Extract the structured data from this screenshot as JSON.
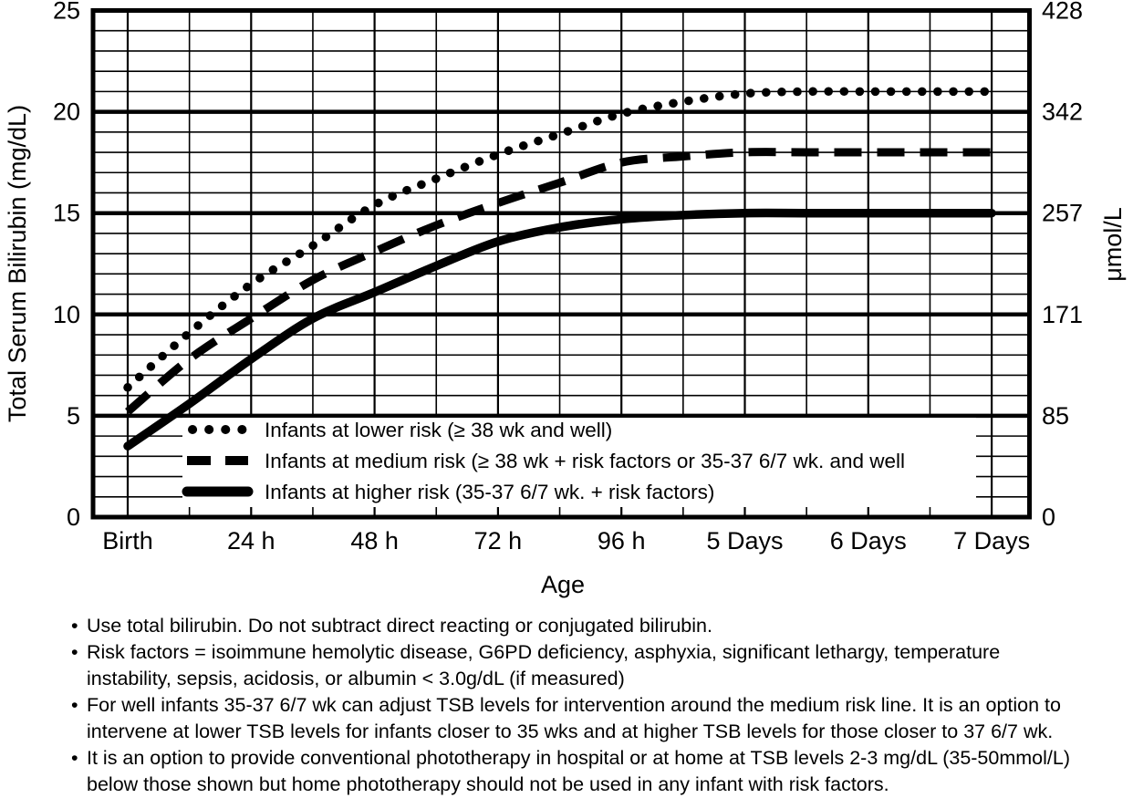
{
  "chart_data": {
    "type": "line",
    "title": "",
    "xlabel": "Age",
    "ylabel_left": "Total Serum Bilirubin (mg/dL)",
    "ylabel_right": "μmol/L",
    "ylim": [
      0,
      25
    ],
    "xlim_hours": [
      -6.7,
      175.4
    ],
    "grid": {
      "on": true,
      "x_minor_step_hours": 12,
      "y_minor_step_mgdl": 1,
      "y_major_step_mgdl": 5
    },
    "x_ticks": [
      {
        "hours": 0,
        "label": "Birth"
      },
      {
        "hours": 24,
        "label": "24 h"
      },
      {
        "hours": 48,
        "label": "48 h"
      },
      {
        "hours": 72,
        "label": "72 h"
      },
      {
        "hours": 96,
        "label": "96 h"
      },
      {
        "hours": 120,
        "label": "5 Days"
      },
      {
        "hours": 144,
        "label": "6 Days"
      },
      {
        "hours": 168,
        "label": "7 Days"
      }
    ],
    "y_left_ticks": [
      0,
      5,
      10,
      15,
      20,
      25
    ],
    "y_right_ticks": [
      {
        "at_mgdl": 0,
        "label": "0"
      },
      {
        "at_mgdl": 5,
        "label": "85"
      },
      {
        "at_mgdl": 10,
        "label": "171"
      },
      {
        "at_mgdl": 15,
        "label": "257"
      },
      {
        "at_mgdl": 20,
        "label": "342"
      },
      {
        "at_mgdl": 25,
        "label": "428"
      }
    ],
    "legend_position": "inside-bottom-left",
    "x_hours": [
      0,
      12,
      24,
      36,
      48,
      60,
      72,
      84,
      96,
      108,
      120,
      132,
      144,
      156,
      168
    ],
    "series": [
      {
        "name": "lower-risk",
        "style": "dotted",
        "label": "Infants at lower risk (≥ 38 wk and well)",
        "values": [
          6.4,
          9.1,
          11.5,
          13.4,
          15.4,
          16.7,
          17.9,
          18.9,
          19.9,
          20.5,
          20.9,
          21,
          21,
          21,
          21
        ]
      },
      {
        "name": "medium-risk",
        "style": "dashed",
        "label": "Infants at medium risk (≥ 38 wk + risk factors or 35-37 6/7 wk. and well",
        "values": [
          5.2,
          7.8,
          9.8,
          11.7,
          13.1,
          14.4,
          15.5,
          16.5,
          17.5,
          17.8,
          18,
          18,
          18,
          18,
          18
        ]
      },
      {
        "name": "higher-risk",
        "style": "solid",
        "label": "Infants at higher risk (35-37 6/7 wk. + risk factors)",
        "values": [
          3.5,
          5.6,
          7.8,
          9.8,
          11.1,
          12.4,
          13.6,
          14.3,
          14.7,
          14.9,
          15,
          15,
          15,
          15,
          15
        ]
      }
    ],
    "colors": {
      "line_color": "#000000",
      "background": "#ffffff"
    }
  },
  "footnotes": {
    "bullet_char": "•",
    "items": [
      "Use total bilirubin.  Do not subtract direct reacting or conjugated bilirubin.",
      "Risk factors = isoimmune hemolytic disease, G6PD deficiency, asphyxia, significant lethargy, temperature instability, sepsis, acidosis, or albumin < 3.0g/dL (if measured)",
      "For well infants 35-37 6/7 wk can adjust TSB levels for intervention around the medium risk line.  It is an option to intervene at lower TSB levels for infants closer to 35 wks and at higher TSB levels for those closer to 37 6/7 wk.",
      "It is an option to provide conventional phototherapy in hospital or at home at TSB levels 2-3 mg/dL (35-50mmol/L) below those shown but home phototherapy should not be used in any infant with risk factors."
    ]
  }
}
